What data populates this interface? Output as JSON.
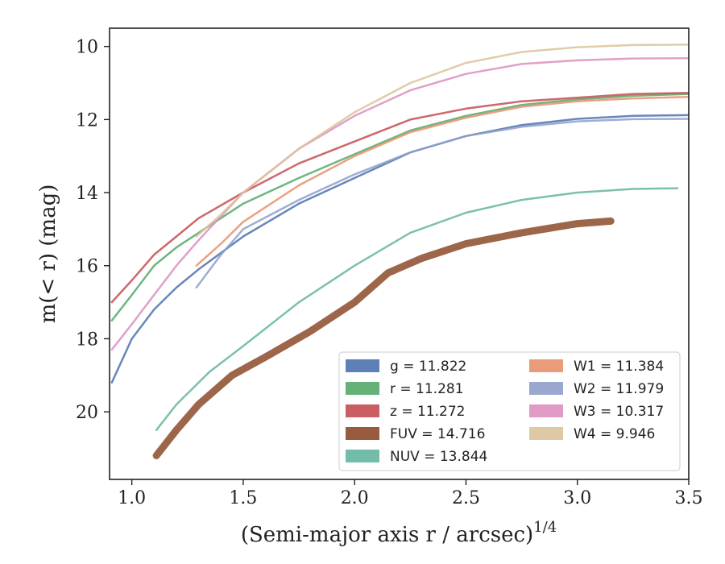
{
  "chart_data": {
    "type": "line",
    "xlabel": "(Semi-major axis r / arcsec)",
    "xlabel_sup": "1/4",
    "ylabel": "m(< r) (mag)",
    "xlim": [
      0.9,
      3.5
    ],
    "ylim": [
      21.85,
      9.5
    ],
    "y_inverted": true,
    "xticks": [
      "1.0",
      "1.5",
      "2.0",
      "2.5",
      "3.0",
      "3.5"
    ],
    "xtick_values": [
      1.0,
      1.5,
      2.0,
      2.5,
      3.0,
      3.5
    ],
    "yticks": [
      "10",
      "12",
      "14",
      "16",
      "18",
      "20"
    ],
    "ytick_values": [
      10,
      12,
      14,
      16,
      18,
      20
    ],
    "grid": false,
    "legend_position": "lower-right",
    "legend_columns": 2,
    "series": [
      {
        "name": "g = 11.822",
        "color": "#4c72b0",
        "width": 2.5,
        "x": [
          0.91,
          1.0,
          1.1,
          1.2,
          1.3,
          1.5,
          1.75,
          2.0,
          2.25,
          2.5,
          2.75,
          3.0,
          3.25,
          3.5
        ],
        "y": [
          19.2,
          18.0,
          17.2,
          16.6,
          16.1,
          15.2,
          14.3,
          13.6,
          12.9,
          12.45,
          12.15,
          11.98,
          11.9,
          11.88
        ]
      },
      {
        "name": "r = 11.281",
        "color": "#55a868",
        "width": 2.5,
        "x": [
          0.91,
          1.0,
          1.1,
          1.2,
          1.3,
          1.5,
          1.75,
          2.0,
          2.25,
          2.5,
          2.75,
          3.0,
          3.25,
          3.5
        ],
        "y": [
          17.5,
          16.8,
          16.0,
          15.5,
          15.1,
          14.3,
          13.6,
          12.95,
          12.3,
          11.9,
          11.6,
          11.45,
          11.35,
          11.3
        ]
      },
      {
        "name": "z = 11.272",
        "color": "#c44e52",
        "width": 2.5,
        "x": [
          0.91,
          1.0,
          1.1,
          1.2,
          1.3,
          1.5,
          1.75,
          2.0,
          2.25,
          2.5,
          2.75,
          3.0,
          3.25,
          3.5
        ],
        "y": [
          17.0,
          16.4,
          15.7,
          15.2,
          14.7,
          14.0,
          13.2,
          12.6,
          12.0,
          11.7,
          11.5,
          11.4,
          11.3,
          11.27
        ]
      },
      {
        "name": "FUV = 14.716",
        "color": "#8c4a2a",
        "width": 9,
        "x": [
          1.11,
          1.2,
          1.3,
          1.45,
          1.6,
          1.8,
          2.0,
          2.15,
          2.3,
          2.5,
          2.75,
          3.0,
          3.15
        ],
        "y": [
          21.2,
          20.5,
          19.8,
          19.0,
          18.5,
          17.8,
          17.0,
          16.2,
          15.8,
          15.4,
          15.1,
          14.85,
          14.78
        ]
      },
      {
        "name": "NUV = 13.844",
        "color": "#64b5a0",
        "width": 2.5,
        "x": [
          1.11,
          1.2,
          1.35,
          1.5,
          1.75,
          2.0,
          2.25,
          2.5,
          2.75,
          3.0,
          3.25,
          3.45
        ],
        "y": [
          20.5,
          19.8,
          18.9,
          18.2,
          17.0,
          16.0,
          15.1,
          14.55,
          14.2,
          14.0,
          13.9,
          13.88
        ]
      },
      {
        "name": "W1 = 11.384",
        "color": "#e8906a",
        "width": 2.5,
        "x": [
          1.29,
          1.4,
          1.5,
          1.75,
          2.0,
          2.25,
          2.5,
          2.75,
          3.0,
          3.25,
          3.5
        ],
        "y": [
          16.0,
          15.4,
          14.8,
          13.8,
          13.0,
          12.35,
          11.95,
          11.65,
          11.5,
          11.42,
          11.38
        ]
      },
      {
        "name": "W2 = 11.979",
        "color": "#8f9fca",
        "width": 2.5,
        "x": [
          1.29,
          1.4,
          1.5,
          1.75,
          2.0,
          2.25,
          2.5,
          2.75,
          3.0,
          3.25,
          3.5
        ],
        "y": [
          16.6,
          15.7,
          15.0,
          14.2,
          13.5,
          12.9,
          12.45,
          12.2,
          12.05,
          11.99,
          11.98
        ]
      },
      {
        "name": "W3 = 10.317",
        "color": "#dc8fc0",
        "width": 2.5,
        "x": [
          0.91,
          1.0,
          1.1,
          1.2,
          1.3,
          1.5,
          1.75,
          2.0,
          2.25,
          2.5,
          2.75,
          3.0,
          3.25,
          3.5
        ],
        "y": [
          18.3,
          17.6,
          16.8,
          16.0,
          15.3,
          14.0,
          12.8,
          11.9,
          11.2,
          10.75,
          10.48,
          10.38,
          10.33,
          10.32
        ]
      },
      {
        "name": "W4 = 9.946",
        "color": "#dcc39a",
        "width": 2.5,
        "x": [
          1.29,
          1.4,
          1.5,
          1.75,
          2.0,
          2.25,
          2.5,
          2.75,
          3.0,
          3.25,
          3.5
        ],
        "y": [
          15.2,
          14.6,
          14.0,
          12.8,
          11.8,
          11.0,
          10.45,
          10.15,
          10.02,
          9.96,
          9.95
        ]
      }
    ]
  }
}
